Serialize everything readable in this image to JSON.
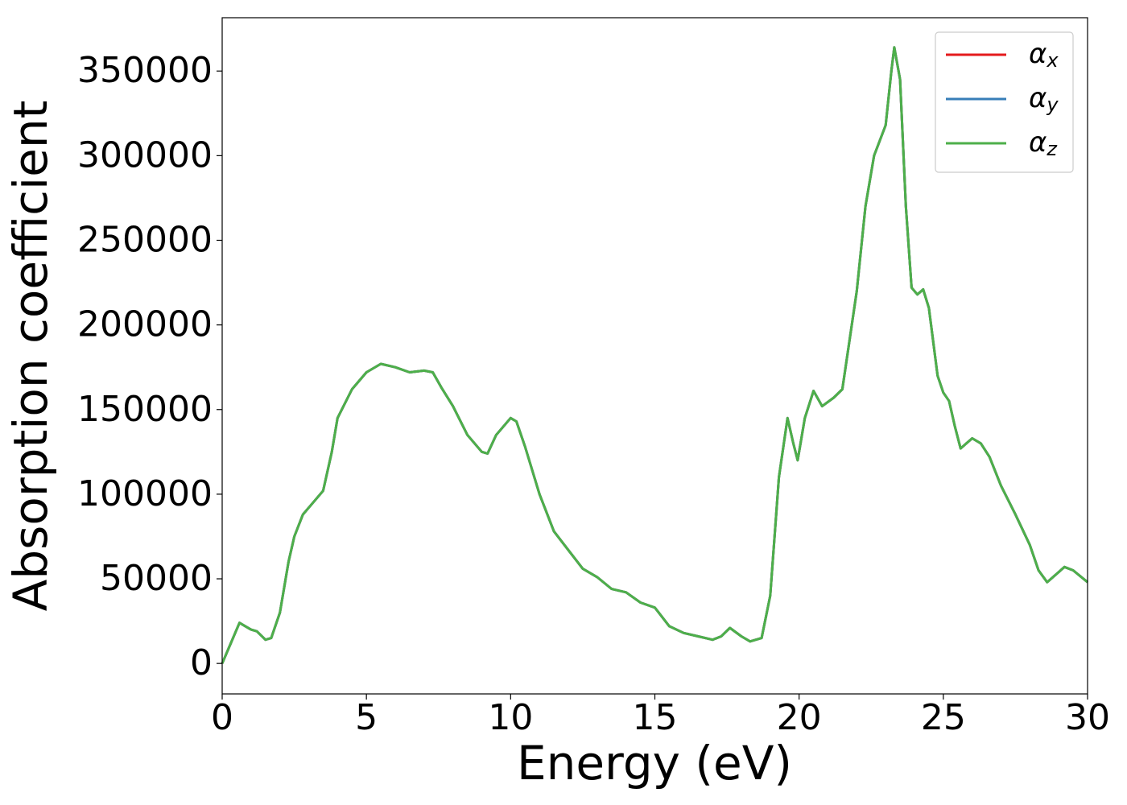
{
  "chart_data": {
    "type": "line",
    "xlabel": "Energy (eV)",
    "ylabel": "Absorption coefficient",
    "x": [
      0,
      0.3,
      0.6,
      0.8,
      1.0,
      1.2,
      1.5,
      1.7,
      2.0,
      2.3,
      2.5,
      2.8,
      3.0,
      3.5,
      3.8,
      4.0,
      4.5,
      5.0,
      5.5,
      6.0,
      6.5,
      7.0,
      7.3,
      7.6,
      8.0,
      8.5,
      9.0,
      9.2,
      9.5,
      10.0,
      10.2,
      10.5,
      11.0,
      11.5,
      12.0,
      12.5,
      13.0,
      13.5,
      14.0,
      14.5,
      15.0,
      15.5,
      16.0,
      16.5,
      17.0,
      17.3,
      17.6,
      18.0,
      18.3,
      18.7,
      19.0,
      19.3,
      19.6,
      19.8,
      19.95,
      20.2,
      20.5,
      20.8,
      21.2,
      21.5,
      22.0,
      22.3,
      22.6,
      23.0,
      23.2,
      23.3,
      23.5,
      23.7,
      23.9,
      24.1,
      24.3,
      24.5,
      24.8,
      25.0,
      25.2,
      25.4,
      25.6,
      25.8,
      26.0,
      26.3,
      26.6,
      27.0,
      27.5,
      28.0,
      28.3,
      28.6,
      29.0,
      29.2,
      29.5,
      30.0
    ],
    "series": [
      {
        "name": "αx",
        "color": "#e41a1c",
        "values": [
          0,
          12000,
          24000,
          22000,
          20000,
          19000,
          14000,
          15000,
          30000,
          60000,
          75000,
          88000,
          92000,
          102000,
          125000,
          145000,
          162000,
          172000,
          177000,
          175000,
          172000,
          173000,
          172000,
          163000,
          152000,
          135000,
          125000,
          124000,
          135000,
          145000,
          143000,
          128000,
          100000,
          78000,
          67000,
          56000,
          51000,
          44000,
          42000,
          36000,
          33000,
          22000,
          18000,
          16000,
          14000,
          16000,
          21000,
          16000,
          13000,
          15000,
          40000,
          110000,
          145000,
          130000,
          120000,
          145000,
          161000,
          152000,
          157000,
          162000,
          220000,
          270000,
          300000,
          318000,
          350000,
          364000,
          345000,
          270000,
          222000,
          218000,
          221000,
          210000,
          170000,
          160000,
          155000,
          140000,
          127000,
          130000,
          133000,
          130000,
          122000,
          105000,
          88000,
          70000,
          55000,
          48000,
          54000,
          57000,
          55000,
          48000
        ]
      },
      {
        "name": "αy",
        "color": "#377eb8",
        "values": [
          0,
          12000,
          24000,
          22000,
          20000,
          19000,
          14000,
          15000,
          30000,
          60000,
          75000,
          88000,
          92000,
          102000,
          125000,
          145000,
          162000,
          172000,
          177000,
          175000,
          172000,
          173000,
          172000,
          163000,
          152000,
          135000,
          125000,
          124000,
          135000,
          145000,
          143000,
          128000,
          100000,
          78000,
          67000,
          56000,
          51000,
          44000,
          42000,
          36000,
          33000,
          22000,
          18000,
          16000,
          14000,
          16000,
          21000,
          16000,
          13000,
          15000,
          40000,
          110000,
          145000,
          130000,
          120000,
          145000,
          161000,
          152000,
          157000,
          162000,
          220000,
          270000,
          300000,
          318000,
          350000,
          364000,
          345000,
          270000,
          222000,
          218000,
          221000,
          210000,
          170000,
          160000,
          155000,
          140000,
          127000,
          130000,
          133000,
          130000,
          122000,
          105000,
          88000,
          70000,
          55000,
          48000,
          54000,
          57000,
          55000,
          48000
        ]
      },
      {
        "name": "αz",
        "color": "#4daf4a",
        "values": [
          0,
          12000,
          24000,
          22000,
          20000,
          19000,
          14000,
          15000,
          30000,
          60000,
          75000,
          88000,
          92000,
          102000,
          125000,
          145000,
          162000,
          172000,
          177000,
          175000,
          172000,
          173000,
          172000,
          163000,
          152000,
          135000,
          125000,
          124000,
          135000,
          145000,
          143000,
          128000,
          100000,
          78000,
          67000,
          56000,
          51000,
          44000,
          42000,
          36000,
          33000,
          22000,
          18000,
          16000,
          14000,
          16000,
          21000,
          16000,
          13000,
          15000,
          40000,
          110000,
          145000,
          130000,
          120000,
          145000,
          161000,
          152000,
          157000,
          162000,
          220000,
          270000,
          300000,
          318000,
          350000,
          364000,
          345000,
          270000,
          222000,
          218000,
          221000,
          210000,
          170000,
          160000,
          155000,
          140000,
          127000,
          130000,
          133000,
          130000,
          122000,
          105000,
          88000,
          70000,
          55000,
          48000,
          54000,
          57000,
          55000,
          48000
        ]
      }
    ],
    "xlim": [
      0,
      30
    ],
    "xticks": [
      0,
      5,
      10,
      15,
      20,
      25,
      30
    ],
    "ylim": [
      -18000,
      381500
    ],
    "yticks": [
      0,
      50000,
      100000,
      150000,
      200000,
      250000,
      300000,
      350000
    ],
    "grid": false,
    "legend": "upper right"
  }
}
